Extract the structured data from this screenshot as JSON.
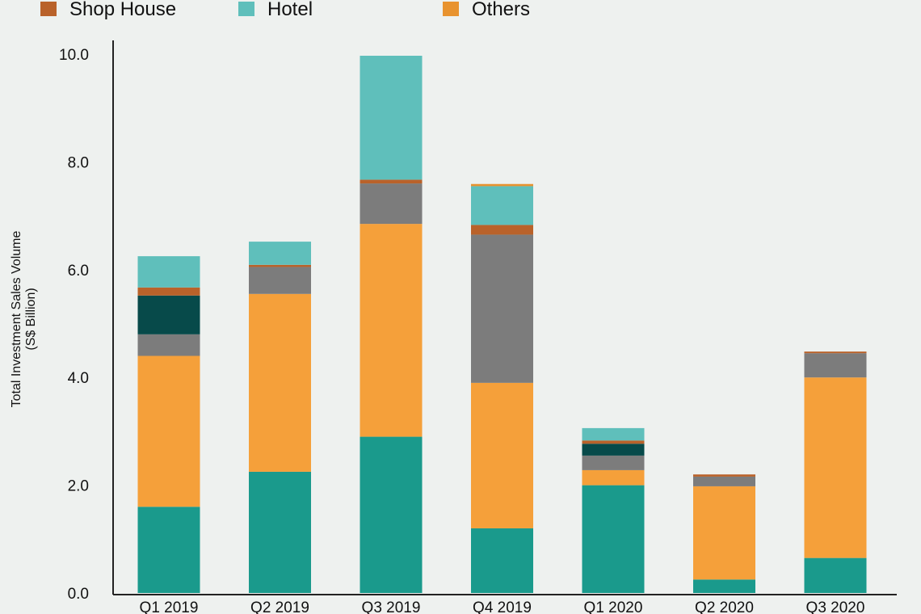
{
  "chart_data": {
    "type": "bar",
    "stacked": true,
    "ylabel": "Total Investment Sales Volume",
    "ylabel_unit": "(S$ Billion)",
    "ylim": [
      0,
      10
    ],
    "yticks": [
      "0.0",
      "2.0",
      "4.0",
      "6.0",
      "8.0",
      "10.0"
    ],
    "categories": [
      "Q1 2019",
      "Q2 2019",
      "Q3 2019",
      "Q4 2019",
      "Q1 2020",
      "Q2 2020",
      "Q3 2020"
    ],
    "legend": [
      {
        "name": "Shop House",
        "color": "#b9622a"
      },
      {
        "name": "Hotel",
        "color": "#5fbfbb"
      },
      {
        "name": "Others",
        "color": "#e8932f"
      }
    ],
    "series": [
      {
        "key": "teal",
        "color": "#1a9a8c",
        "values": [
          1.6,
          2.25,
          2.9,
          1.2,
          2.0,
          0.25,
          0.65
        ]
      },
      {
        "key": "orange",
        "color": "#f5a03a",
        "values": [
          2.8,
          3.3,
          3.95,
          2.7,
          0.28,
          1.73,
          3.35
        ]
      },
      {
        "key": "gray",
        "color": "#7c7c7c",
        "values": [
          0.4,
          0.5,
          0.75,
          2.75,
          0.27,
          0.18,
          0.45
        ]
      },
      {
        "key": "dark",
        "color": "#074a4a",
        "values": [
          0.72,
          0,
          0,
          0,
          0.22,
          0,
          0
        ]
      },
      {
        "key": "shop-house",
        "color": "#b9622a",
        "values": [
          0.15,
          0.04,
          0.07,
          0.18,
          0.06,
          0.04,
          0.03
        ]
      },
      {
        "key": "hotel",
        "color": "#5fbfbb",
        "values": [
          0.58,
          0.43,
          2.3,
          0.72,
          0.23,
          0,
          0
        ]
      },
      {
        "key": "top-cap",
        "color": "#e8932f",
        "values": [
          0,
          0,
          0,
          0.04,
          0,
          0,
          0
        ]
      }
    ]
  }
}
